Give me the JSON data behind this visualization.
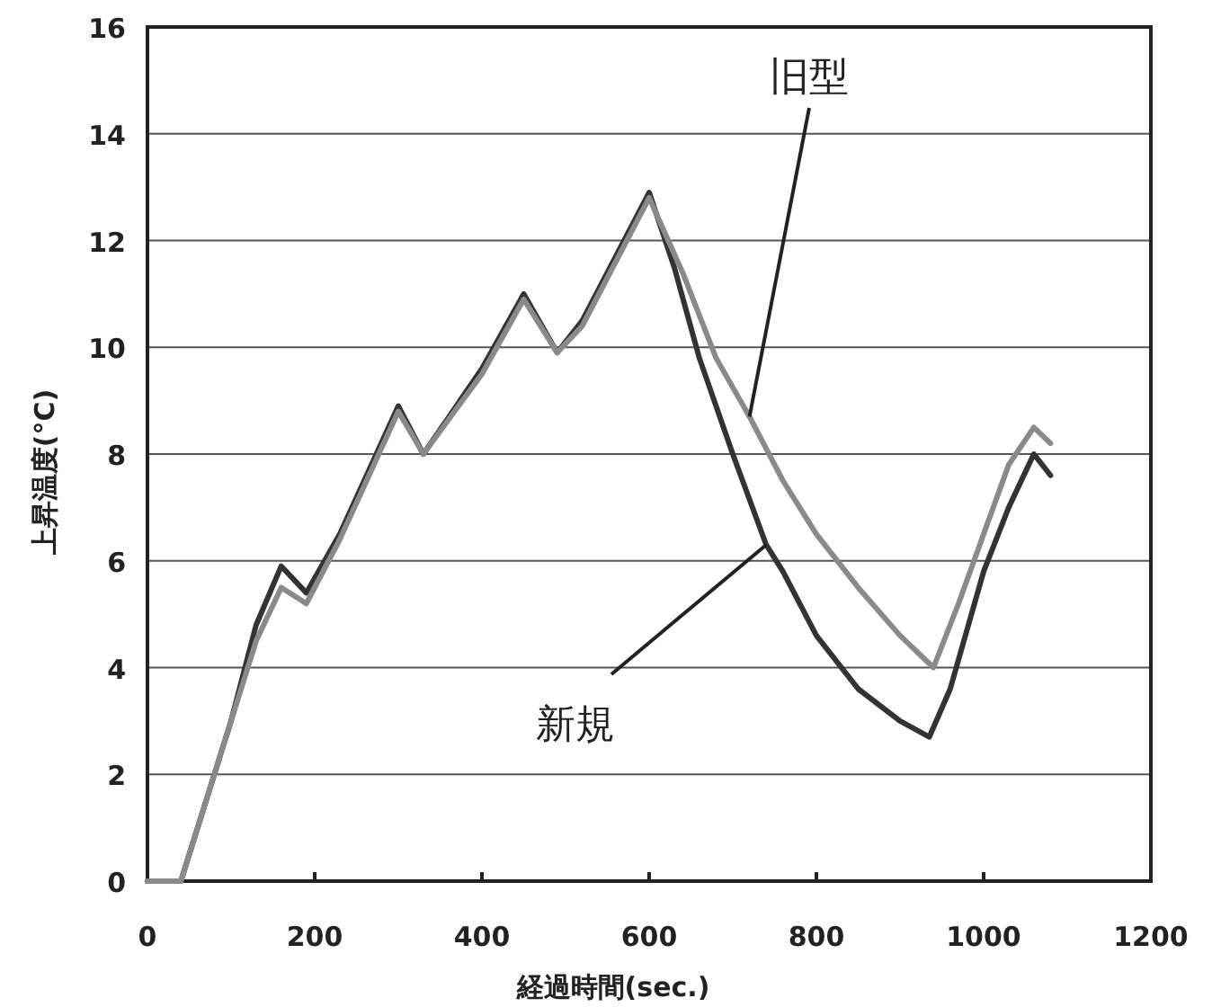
{
  "chart_data": {
    "type": "line",
    "xlabel": "経過時間(sec.)",
    "ylabel": "上昇温度(°C)",
    "xlim": [
      0,
      1200
    ],
    "xticks": [
      0,
      200,
      400,
      600,
      800,
      1000,
      1200
    ],
    "ylim": [
      0,
      16
    ],
    "yticks": [
      0,
      2,
      4,
      6,
      8,
      10,
      12,
      14,
      16
    ],
    "grid": "y",
    "legend": false,
    "annotations": [
      {
        "text": "新規",
        "x": 740,
        "y": 6.3
      },
      {
        "text": "旧型",
        "x": 720,
        "y": 8.7
      }
    ],
    "series": [
      {
        "color": "#333333",
        "x": [
          0,
          40,
          100,
          130,
          160,
          190,
          230,
          300,
          330,
          400,
          450,
          490,
          520,
          600,
          630,
          660,
          700,
          740,
          760,
          800,
          850,
          900,
          935,
          960,
          1000,
          1030,
          1060,
          1080
        ],
        "values": [
          0,
          0,
          3,
          4.8,
          5.9,
          5.4,
          6.5,
          8.9,
          8,
          9.6,
          11,
          9.9,
          10.5,
          12.9,
          11.5,
          9.8,
          8,
          6.3,
          5.8,
          4.6,
          3.6,
          3,
          2.7,
          3.6,
          5.8,
          7,
          8,
          7.6
        ]
      },
      {
        "color": "#8a8a8a",
        "x": [
          0,
          40,
          100,
          130,
          160,
          190,
          230,
          300,
          330,
          400,
          450,
          490,
          520,
          600,
          640,
          680,
          720,
          760,
          800,
          850,
          900,
          940,
          970,
          1000,
          1030,
          1060,
          1080
        ],
        "values": [
          0,
          0,
          3,
          4.5,
          5.5,
          5.2,
          6.4,
          8.8,
          8,
          9.5,
          10.9,
          9.9,
          10.4,
          12.8,
          11.4,
          9.8,
          8.7,
          7.5,
          6.5,
          5.5,
          4.6,
          4,
          5.2,
          6.5,
          7.8,
          8.5,
          8.2
        ]
      }
    ]
  }
}
